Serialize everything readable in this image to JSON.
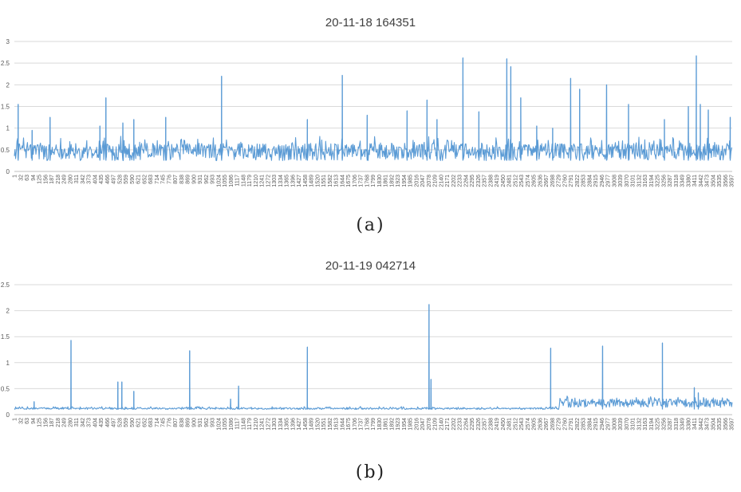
{
  "chart_data": [
    {
      "type": "line",
      "panel": "(a)",
      "title": "20-11-18 164351",
      "caption": "(a)",
      "ylim": [
        0,
        3
      ],
      "yticks": [
        0,
        0.5,
        1,
        1.5,
        2,
        2.5,
        3
      ],
      "ytick_labels": [
        "0",
        "0.5",
        "1",
        "1.5",
        "2",
        "2.5",
        "3"
      ],
      "xlim": [
        1,
        3600
      ],
      "xtick_step": 31,
      "grid": true,
      "legend": "none",
      "series_color": "#5B9BD5",
      "baseline": {
        "low": 0.25,
        "high": 0.65,
        "noise": 0.18
      },
      "spikes": [
        [
          20,
          1.55
        ],
        [
          90,
          0.95
        ],
        [
          180,
          1.25
        ],
        [
          430,
          1.05
        ],
        [
          460,
          1.7
        ],
        [
          545,
          1.12
        ],
        [
          600,
          1.2
        ],
        [
          760,
          1.25
        ],
        [
          1040,
          2.2
        ],
        [
          1470,
          1.2
        ],
        [
          1645,
          2.22
        ],
        [
          1770,
          1.3
        ],
        [
          1970,
          1.4
        ],
        [
          2070,
          1.65
        ],
        [
          2120,
          1.2
        ],
        [
          2250,
          2.62
        ],
        [
          2330,
          1.38
        ],
        [
          2470,
          2.6
        ],
        [
          2490,
          2.42
        ],
        [
          2540,
          1.7
        ],
        [
          2620,
          1.05
        ],
        [
          2700,
          1.0
        ],
        [
          2790,
          2.15
        ],
        [
          2835,
          1.9
        ],
        [
          2970,
          2.0
        ],
        [
          3080,
          1.55
        ],
        [
          3260,
          1.2
        ],
        [
          3380,
          1.5
        ],
        [
          3420,
          2.67
        ],
        [
          3440,
          1.55
        ],
        [
          3480,
          1.42
        ],
        [
          3590,
          1.25
        ]
      ]
    },
    {
      "type": "line",
      "panel": "(b)",
      "title": "20-11-19 042714",
      "caption": "(b)",
      "ylim": [
        0,
        2.5
      ],
      "yticks": [
        0,
        0.5,
        1,
        1.5,
        2,
        2.5
      ],
      "ytick_labels": [
        "0",
        "0.5",
        "1",
        "1.5",
        "2",
        "2.5"
      ],
      "xlim": [
        1,
        3600
      ],
      "xtick_step": 31,
      "grid": true,
      "legend": "none",
      "series_color": "#5B9BD5",
      "baseline": {
        "low": 0.1,
        "high": 0.13,
        "noise": 0.03
      },
      "baseline_raised": {
        "from": 2730,
        "to": 3600,
        "low": 0.14,
        "high": 0.3,
        "noise": 0.07
      },
      "spikes": [
        [
          100,
          0.25
        ],
        [
          285,
          1.43
        ],
        [
          520,
          0.63
        ],
        [
          540,
          0.63
        ],
        [
          600,
          0.45
        ],
        [
          880,
          1.23
        ],
        [
          1085,
          0.3
        ],
        [
          1125,
          0.55
        ],
        [
          1470,
          1.3
        ],
        [
          2080,
          2.12
        ],
        [
          2090,
          0.68
        ],
        [
          2690,
          1.28
        ],
        [
          2950,
          1.32
        ],
        [
          3250,
          1.38
        ],
        [
          3410,
          0.52
        ],
        [
          3430,
          0.42
        ]
      ]
    }
  ]
}
